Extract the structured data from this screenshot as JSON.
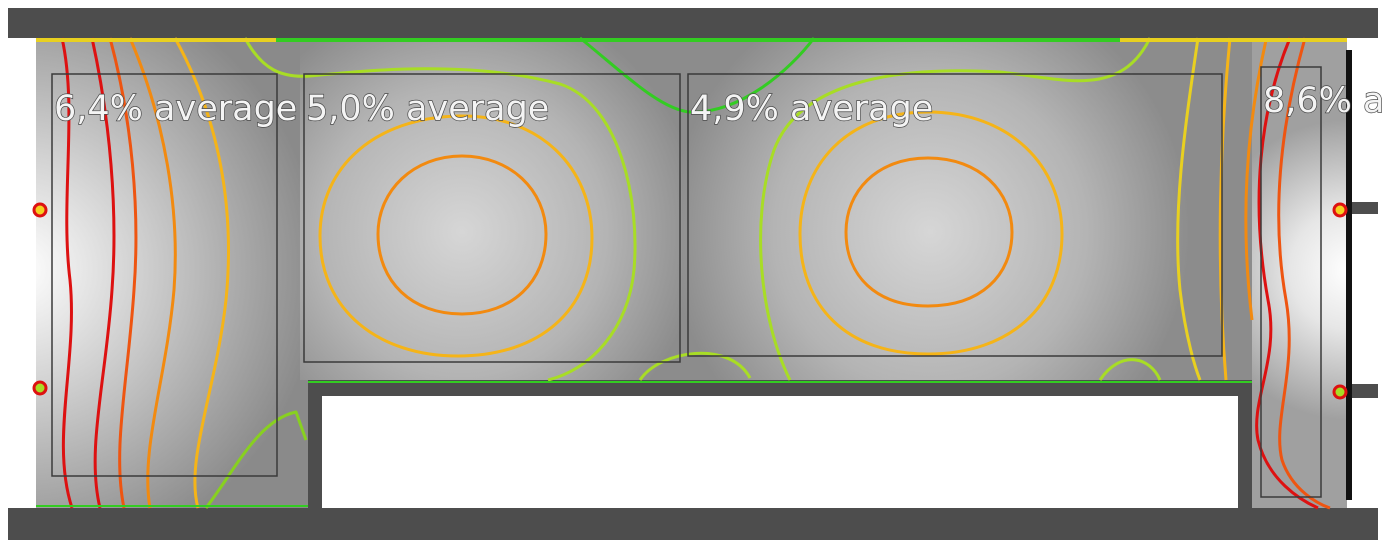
{
  "zones": [
    {
      "id": "zone-1",
      "label": "6,4% average",
      "value_percent": 6.4
    },
    {
      "id": "zone-2",
      "label": "5,0% average",
      "value_percent": 5.0
    },
    {
      "id": "zone-3",
      "label": "4,9% average",
      "value_percent": 4.9
    },
    {
      "id": "zone-4",
      "label": "8,6% a",
      "value_percent": 8.6
    }
  ],
  "colors": {
    "wall": "#4d4d4d",
    "frame": "#3a3a3a",
    "floor_dark": "#8f8f8f",
    "floor_light": "#cfcfcf",
    "contour_red": "#dd1111",
    "contour_orange_red": "#ee5511",
    "contour_orange": "#f28a10",
    "contour_amber": "#f5b418",
    "contour_yellow": "#e8d020",
    "contour_yellow_green": "#a8dd25",
    "contour_green": "#33cc22"
  }
}
